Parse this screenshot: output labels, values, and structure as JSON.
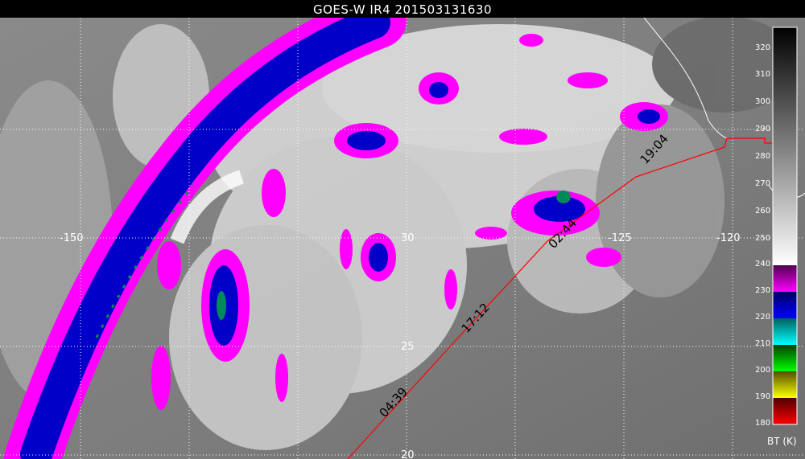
{
  "title": "GOES-W IR4 201503131630",
  "map": {
    "longitude_labels": [
      "-150",
      "-125",
      "-120"
    ],
    "latitude_labels": [
      "30",
      "25",
      "20"
    ],
    "track_times": [
      "04:39",
      "17:12",
      "02:44",
      "19:04"
    ],
    "track_color": "#ff0000",
    "coastline_color": "#ffffff"
  },
  "colorbar": {
    "label": "BT (K)",
    "ticks": [
      "320",
      "310",
      "300",
      "290",
      "280",
      "270",
      "260",
      "250",
      "240",
      "230",
      "220",
      "210",
      "200",
      "190",
      "180"
    ],
    "color_steps": [
      {
        "range": "230-240",
        "color": "#ff00ff"
      },
      {
        "range": "220-230",
        "color": "#0000ff"
      },
      {
        "range": "210-220",
        "color": "#00ffff"
      },
      {
        "range": "200-210",
        "color": "#00ff00"
      },
      {
        "range": "190-200",
        "color": "#ffff00"
      },
      {
        "range": "180-190",
        "color": "#ff0000"
      }
    ],
    "gray_range": "250-320"
  }
}
